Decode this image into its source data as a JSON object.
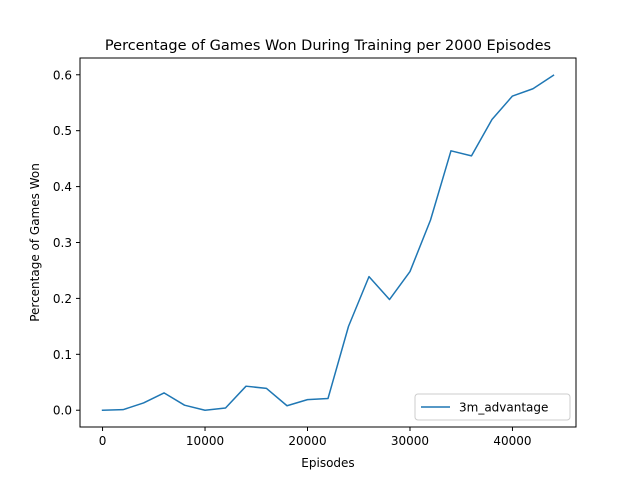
{
  "chart_data": {
    "type": "line",
    "title": "Percentage of Games Won During Training per 2000 Episodes",
    "xlabel": "Episodes",
    "ylabel": "Percentage of Games Won",
    "xlim": [
      -2200,
      46200
    ],
    "ylim": [
      -0.03,
      0.63
    ],
    "xticks": [
      0,
      10000,
      20000,
      30000,
      40000
    ],
    "xtick_labels": [
      "0",
      "10000",
      "20000",
      "30000",
      "40000"
    ],
    "yticks": [
      0.0,
      0.1,
      0.2,
      0.3,
      0.4,
      0.5,
      0.6
    ],
    "ytick_labels": [
      "0.0",
      "0.1",
      "0.2",
      "0.3",
      "0.4",
      "0.5",
      "0.6"
    ],
    "grid": false,
    "legend_position": "lower-right",
    "series": [
      {
        "name": "3m_advantage",
        "color": "#1f77b4",
        "x": [
          0,
          2000,
          4000,
          6000,
          8000,
          10000,
          12000,
          14000,
          16000,
          18000,
          20000,
          22000,
          24000,
          26000,
          28000,
          30000,
          32000,
          34000,
          36000,
          38000,
          40000,
          42000,
          44000
        ],
        "y": [
          0.0,
          0.001,
          0.013,
          0.031,
          0.009,
          0.0,
          0.004,
          0.043,
          0.039,
          0.008,
          0.019,
          0.021,
          0.15,
          0.239,
          0.198,
          0.248,
          0.34,
          0.464,
          0.455,
          0.52,
          0.562,
          0.575,
          0.599
        ]
      }
    ]
  }
}
